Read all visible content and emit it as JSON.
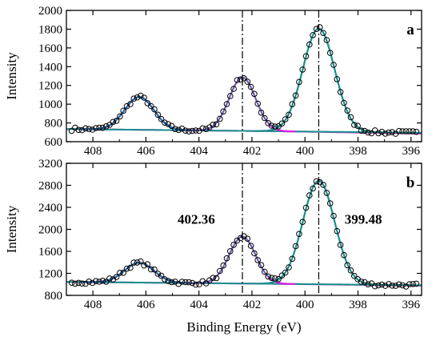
{
  "chart_data": [
    {
      "panel_label": "a",
      "type": "line",
      "ylabel": "Intensity",
      "xlim": [
        409,
        395.6
      ],
      "ylim": [
        600,
        2000
      ],
      "xticks": [
        408,
        406,
        404,
        402,
        400,
        398,
        396
      ],
      "yticks": [
        600,
        800,
        1000,
        1200,
        1400,
        1600,
        1800,
        2000
      ],
      "baseline": {
        "start": 735,
        "end": 695
      },
      "peaks": [
        {
          "center": 406.25,
          "height": 350,
          "sigma": 0.55,
          "color": "#2020cc"
        },
        {
          "center": 402.36,
          "height": 570,
          "sigma": 0.5,
          "color": "#e020e0"
        },
        {
          "center": 399.48,
          "height": 1100,
          "sigma": 0.6,
          "color": "#1a8f8f"
        }
      ],
      "baseline_color": "#1a8f8f",
      "background_color": "#c020c0",
      "reference_lines": [
        402.36,
        399.48
      ],
      "peak_labels": []
    },
    {
      "panel_label": "b",
      "type": "line",
      "ylabel": "Intensity",
      "xlabel": "Binding Energy (eV)",
      "xlim": [
        409,
        395.6
      ],
      "ylim": [
        800,
        3200
      ],
      "xticks": [
        408,
        406,
        404,
        402,
        400,
        398,
        396
      ],
      "yticks": [
        800,
        1200,
        1600,
        2000,
        2400,
        2800,
        3200
      ],
      "baseline": {
        "start": 1045,
        "end": 985
      },
      "peaks": [
        {
          "center": 406.25,
          "height": 360,
          "sigma": 0.55,
          "color": "#2020cc"
        },
        {
          "center": 402.36,
          "height": 850,
          "sigma": 0.5,
          "color": "#e020e0"
        },
        {
          "center": 399.48,
          "height": 1880,
          "sigma": 0.6,
          "color": "#1a8f8f"
        }
      ],
      "baseline_color": "#1a8f8f",
      "background_color": "#c020c0",
      "reference_lines": [
        402.36,
        399.48
      ],
      "peak_labels": [
        {
          "text": "402.36",
          "x": 404.1,
          "y": 2100
        },
        {
          "text": "399.48",
          "x": 397.8,
          "y": 2100
        }
      ]
    }
  ]
}
